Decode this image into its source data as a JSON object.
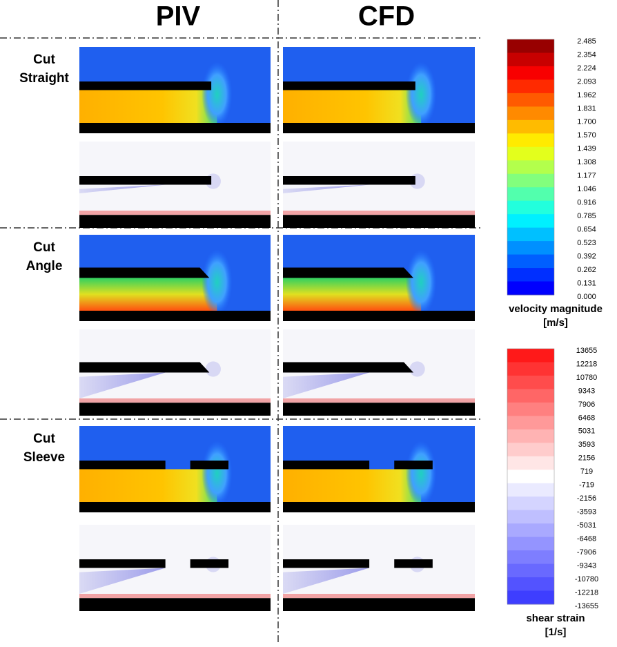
{
  "columns": [
    "PIV",
    "CFD"
  ],
  "rows": [
    {
      "label_lines": [
        "Cut",
        "Straight"
      ]
    },
    {
      "label_lines": [
        "Cut",
        "Angle"
      ]
    },
    {
      "label_lines": [
        "Cut",
        "Sleeve"
      ]
    }
  ],
  "colorbars": [
    {
      "title": "velocity magnitude",
      "unit": "[m/s]",
      "labels": [
        "2.485",
        "2.354",
        "2.224",
        "2.093",
        "1.962",
        "1.831",
        "1.700",
        "1.570",
        "1.439",
        "1.308",
        "1.177",
        "1.046",
        "0.916",
        "0.785",
        "0.654",
        "0.523",
        "0.392",
        "0.262",
        "0.131",
        "0.000"
      ]
    },
    {
      "title": "shear strain",
      "unit": "[1/s]",
      "labels": [
        "13655",
        "12218",
        "10780",
        "9343",
        "7906",
        "6468",
        "5031",
        "3593",
        "2156",
        "719",
        "-719",
        "-2156",
        "-3593",
        "-5031",
        "-6468",
        "-7906",
        "-9343",
        "-10780",
        "-12218",
        "-13655"
      ]
    }
  ]
}
